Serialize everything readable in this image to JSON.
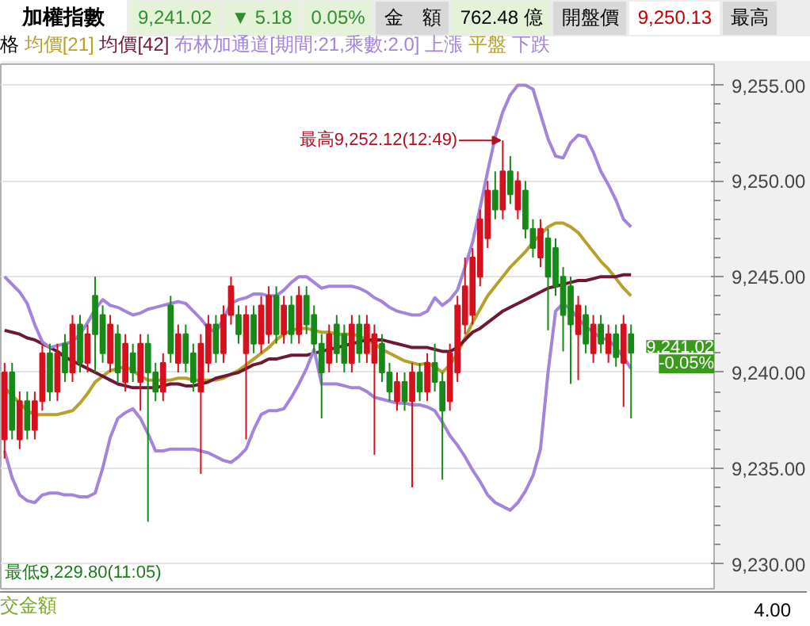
{
  "chart_data": {
    "type": "candlestick",
    "title": "加權指數",
    "categories": [
      null,
      null,
      null,
      null,
      null,
      null,
      null,
      null,
      null,
      null,
      null,
      null,
      null,
      null,
      null,
      null,
      null,
      null,
      null,
      null,
      null,
      null,
      null,
      null,
      null,
      null,
      null,
      null,
      null,
      null,
      null,
      null,
      null,
      null,
      null,
      null,
      null,
      null,
      null,
      null,
      null,
      null,
      null,
      null,
      null,
      null,
      null,
      null,
      null,
      null,
      null,
      null,
      null,
      null,
      null,
      null,
      null,
      null,
      null,
      null,
      null,
      null,
      null,
      null,
      null,
      null,
      null,
      null,
      null,
      null,
      null,
      null,
      null,
      null,
      null,
      null,
      null,
      null,
      null,
      null,
      null,
      null,
      null,
      null
    ],
    "ohlc": [
      [
        9236.5,
        9240.5,
        9235.5,
        9240
      ],
      [
        9240,
        9240.5,
        9236.5,
        9237
      ],
      [
        9236.5,
        9239,
        9236,
        9238.5
      ],
      [
        9238.5,
        9239,
        9236.5,
        9237
      ],
      [
        9237,
        9239,
        9236.5,
        9238.5
      ],
      [
        9238.5,
        9241.5,
        9238,
        9241
      ],
      [
        9241,
        9241.5,
        9238.5,
        9239
      ],
      [
        9239,
        9241.5,
        9238.5,
        9241
      ],
      [
        9241.5,
        9242,
        9239.5,
        9240
      ],
      [
        9240,
        9243,
        9239.5,
        9242.5
      ],
      [
        9242.5,
        9243,
        9240,
        9240.5
      ],
      [
        9240.5,
        9242.5,
        9240,
        9242
      ],
      [
        9244,
        9245,
        9240,
        9242
      ],
      [
        9243,
        9243.5,
        9240.5,
        9241
      ],
      [
        9240.5,
        9243,
        9240,
        9242.5
      ],
      [
        9242,
        9242.5,
        9239.5,
        9240
      ],
      [
        9239.5,
        9242,
        9239,
        9241.5
      ],
      [
        9241,
        9241.5,
        9239.5,
        9240
      ],
      [
        9239.5,
        9242,
        9238,
        9241.5
      ],
      [
        9241.5,
        9242,
        9232.2,
        9240
      ],
      [
        9240,
        9240.5,
        9238.5,
        9239
      ],
      [
        9239,
        9241,
        9238.5,
        9240.5
      ],
      [
        9243.5,
        9244,
        9240.5,
        9241
      ],
      [
        9240.5,
        9242.5,
        9240,
        9242
      ],
      [
        9242,
        9242.5,
        9240,
        9240.5
      ],
      [
        9241,
        9241.5,
        9239,
        9239.5
      ],
      [
        9239,
        9242,
        9234.7,
        9241.5
      ],
      [
        9240.5,
        9243,
        9240,
        9242.5
      ],
      [
        9242.5,
        9243,
        9240.5,
        9241
      ],
      [
        9241,
        9243.5,
        9240.5,
        9243
      ],
      [
        9243,
        9245,
        9242.5,
        9244.5
      ],
      [
        9243,
        9243.5,
        9241.5,
        9242
      ],
      [
        9241,
        9243.5,
        9236.5,
        9243
      ],
      [
        9243,
        9243.5,
        9241,
        9241.5
      ],
      [
        9241.5,
        9244,
        9241,
        9243.5
      ],
      [
        9242,
        9244.5,
        9241.5,
        9244
      ],
      [
        9244,
        9244.5,
        9241.5,
        9242
      ],
      [
        9242,
        9244,
        9241.5,
        9243.5
      ],
      [
        9243.5,
        9244,
        9241.5,
        9242
      ],
      [
        9242,
        9244.5,
        9241.5,
        9244
      ],
      [
        9244,
        9244.5,
        9242,
        9242.5
      ],
      [
        9243,
        9243.5,
        9241,
        9241.5
      ],
      [
        9241.5,
        9242,
        9237.6,
        9240
      ],
      [
        9240.5,
        9242.5,
        9240,
        9242
      ],
      [
        9242.5,
        9243,
        9240.5,
        9241
      ],
      [
        9242,
        9242.5,
        9240,
        9240.5
      ],
      [
        9240.5,
        9243,
        9240,
        9242.5
      ],
      [
        9242.5,
        9243,
        9240.5,
        9241
      ],
      [
        9241,
        9243,
        9240.5,
        9242.5
      ],
      [
        9240.5,
        9242.5,
        9235.7,
        9242
      ],
      [
        9241.5,
        9242,
        9239.5,
        9240
      ],
      [
        9240,
        9240.5,
        9238.5,
        9239
      ],
      [
        9238.5,
        9240,
        9238,
        9239.5
      ],
      [
        9239.5,
        9240,
        9238,
        9238.5
      ],
      [
        9238.5,
        9240.5,
        9234,
        9240
      ],
      [
        9240,
        9240.5,
        9238.5,
        9239
      ],
      [
        9239,
        9241,
        9238.5,
        9240.5
      ],
      [
        9240.5,
        9241.5,
        9239,
        9239.5
      ],
      [
        9239.5,
        9240,
        9234.4,
        9238
      ],
      [
        9238.5,
        9241.5,
        9238,
        9241
      ],
      [
        9240,
        9244,
        9239.5,
        9243.5
      ],
      [
        9242.5,
        9246,
        9242,
        9244.5
      ],
      [
        9243,
        9246.5,
        9242.5,
        9246
      ],
      [
        9245,
        9248.5,
        9244.5,
        9248
      ],
      [
        9247,
        9250,
        9246.5,
        9249.5
      ],
      [
        9249.5,
        9250.5,
        9248,
        9248.5
      ],
      [
        9248.5,
        9252.12,
        9248,
        9250.5
      ],
      [
        9250.5,
        9251.3,
        9248.8,
        9249.3
      ],
      [
        9248.5,
        9250.5,
        9248,
        9250
      ],
      [
        9249.5,
        9250,
        9247,
        9247.5
      ],
      [
        9247.5,
        9248,
        9246,
        9246.5
      ],
      [
        9246,
        9248,
        9245.5,
        9247.5
      ],
      [
        9247,
        9247.5,
        9242.2,
        9245
      ],
      [
        9246.5,
        9247,
        9244,
        9244.5
      ],
      [
        9245,
        9245.5,
        9241.1,
        9243
      ],
      [
        9244.5,
        9245,
        9239.4,
        9242.5
      ],
      [
        9242,
        9244,
        9239.6,
        9243.5
      ],
      [
        9243,
        9243.5,
        9241,
        9241.5
      ],
      [
        9241,
        9243,
        9240.5,
        9242.5
      ],
      [
        9242.5,
        9243,
        9241,
        9241.5
      ],
      [
        9241,
        9242.5,
        9240.5,
        9242
      ],
      [
        9242,
        9242.5,
        9240.3,
        9240.8
      ],
      [
        9240.5,
        9243,
        9238.2,
        9242.5
      ],
      [
        9242,
        9242.5,
        9237.6,
        9241.02
      ]
    ],
    "colors": [
      "#d7101e",
      "#168a16",
      "#d7101e",
      "#168a16",
      "#d7101e",
      "#d7101e",
      "#168a16",
      "#d7101e",
      "#168a16",
      "#d7101e",
      "#168a16",
      "#d7101e",
      "#168a16",
      "#168a16",
      "#d7101e",
      "#168a16",
      "#d7101e",
      "#168a16",
      "#d7101e",
      "#168a16",
      "#168a16",
      "#d7101e",
      "#168a16",
      "#d7101e",
      "#168a16",
      "#168a16",
      "#d7101e",
      "#d7101e",
      "#168a16",
      "#d7101e",
      "#d7101e",
      "#168a16",
      "#d7101e",
      "#168a16",
      "#d7101e",
      "#d7101e",
      "#168a16",
      "#d7101e",
      "#168a16",
      "#d7101e",
      "#168a16",
      "#168a16",
      "#168a16",
      "#d7101e",
      "#168a16",
      "#168a16",
      "#d7101e",
      "#168a16",
      "#d7101e",
      "#d7101e",
      "#168a16",
      "#168a16",
      "#d7101e",
      "#168a16",
      "#d7101e",
      "#168a16",
      "#d7101e",
      "#168a16",
      "#168a16",
      "#d7101e",
      "#d7101e",
      "#d7101e",
      "#d7101e",
      "#d7101e",
      "#d7101e",
      "#168a16",
      "#d7101e",
      "#168a16",
      "#d7101e",
      "#168a16",
      "#168a16",
      "#d7101e",
      "#168a16",
      "#168a16",
      "#168a16",
      "#168a16",
      "#d7101e",
      "#168a16",
      "#d7101e",
      "#168a16",
      "#d7101e",
      "#168a16",
      "#d7101e",
      "#168a16"
    ],
    "series": [
      {
        "name": "均價[21]",
        "type": "line",
        "color": "#b5a22c",
        "values": [
          9239.2,
          9238.8,
          9238.4,
          9238.0,
          9237.8,
          9237.8,
          9237.8,
          9237.8,
          9237.9,
          9238.0,
          9238.4,
          9238.9,
          9239.5,
          9239.8,
          9240.1,
          9240.2,
          9240.3,
          9240.1,
          9239.8,
          9239.6,
          9239.6,
          9239.6,
          9239.6,
          9239.7,
          9239.7,
          9239.6,
          9239.6,
          9239.6,
          9239.6,
          9239.7,
          9239.9,
          9240.1,
          9240.4,
          9240.7,
          9241.0,
          9241.3,
          9241.7,
          9242.0,
          9242.2,
          9242.3,
          9242.3,
          9242.2,
          9242.1,
          9242.1,
          9242.0,
          9242.0,
          9242.0,
          9241.9,
          9241.7,
          9241.5,
          9241.2,
          9241.0,
          9240.8,
          9240.6,
          9240.5,
          9240.4,
          9240.5,
          9240.3,
          9240.0,
          9240.4,
          9241.0,
          9241.8,
          9242.6,
          9243.3,
          9244.0,
          9244.5,
          9245.0,
          9245.5,
          9245.9,
          9246.3,
          9246.8,
          9247.2,
          9247.6,
          9247.8,
          9247.8,
          9247.6,
          9247.3,
          9246.8,
          9246.3,
          9245.8,
          9245.4,
          9244.9,
          9244.4,
          9244.0
        ]
      },
      {
        "name": "均價[42]",
        "type": "line",
        "color": "#6e1838",
        "values": [
          9242.2,
          9242.1,
          9242.0,
          9241.8,
          9241.7,
          9241.5,
          9241.3,
          9241.1,
          9240.8,
          9240.6,
          9240.4,
          9240.2,
          9240.0,
          9239.8,
          9239.6,
          9239.4,
          9239.3,
          9239.2,
          9239.2,
          9239.2,
          9239.2,
          9239.3,
          9239.4,
          9239.4,
          9239.3,
          9239.3,
          9239.4,
          9239.5,
          9239.7,
          9239.8,
          9239.9,
          9240.0,
          9240.2,
          9240.4,
          9240.5,
          9240.7,
          9240.7,
          9240.8,
          9240.9,
          9240.9,
          9240.9,
          9241.0,
          9241.1,
          9241.2,
          9241.3,
          9241.4,
          9241.5,
          9241.6,
          9241.7,
          9241.7,
          9241.7,
          9241.6,
          9241.5,
          9241.4,
          9241.3,
          9241.3,
          9241.3,
          9241.2,
          9241.1,
          9241.1,
          9241.3,
          9241.7,
          9242.1,
          9242.3,
          9242.6,
          9242.9,
          9243.2,
          9243.4,
          9243.6,
          9243.8,
          9244.0,
          9244.2,
          9244.4,
          9244.5,
          9244.6,
          9244.7,
          9244.8,
          9244.8,
          9244.9,
          9245.0,
          9245.0,
          9245.0,
          9245.1,
          9245.1
        ]
      },
      {
        "name": "布林加通道[期間:21,乘數:2.0]",
        "type": "line",
        "color": "#a383dc",
        "values": [
          9245.0,
          9244.6,
          9244.2,
          9243.6,
          9242.5,
          9241.6,
          9241.3,
          9241.4,
          9241.5,
          9241.6,
          9242.0,
          9242.6,
          9243.3,
          9243.8,
          9243.5,
          9243.4,
          9243.2,
          9243.0,
          9243.1,
          9243.3,
          9243.4,
          9243.5,
          9243.6,
          9243.7,
          9243.6,
          9243.2,
          9242.8,
          9242.3,
          9242.1,
          9242.8,
          9243.6,
          9243.8,
          9243.9,
          9244.1,
          9244.1,
          9244.0,
          9244.0,
          9244.3,
          9244.7,
          9245.0,
          9245.0,
          9244.7,
          9244.4,
          9244.5,
          9244.5,
          9244.5,
          9244.5,
          9244.4,
          9244.2,
          9243.9,
          9243.7,
          9243.4,
          9243.2,
          9243.1,
          9243.0,
          9243.0,
          9243.2,
          9243.9,
          9243.5,
          9243.8,
          9244.3,
          9245.5,
          9246.8,
          9248.6,
          9250.5,
          9252.3,
          9253.6,
          9254.5,
          9255.0,
          9255.0,
          9254.8,
          9253.5,
          9252.2,
          9251.3,
          9251.2,
          9252.0,
          9252.4,
          9252.3,
          9251.5,
          9250.5,
          9249.8,
          9249.0,
          9248.0,
          9247.6
        ]
      },
      {
        "type": "line",
        "color": "#a383dc",
        "values": [
          9235.9,
          9234.5,
          9233.6,
          9233.3,
          9233.2,
          9233.6,
          9233.7,
          9233.7,
          9233.6,
          9233.6,
          9233.5,
          9233.5,
          9233.7,
          9235.0,
          9236.6,
          9237.6,
          9237.9,
          9238.1,
          9237.6,
          9236.8,
          9235.9,
          9235.9,
          9236.0,
          9236.0,
          9236.0,
          9236.0,
          9235.9,
          9235.8,
          9235.6,
          9235.4,
          9235.3,
          9235.6,
          9236.0,
          9237.0,
          9237.8,
          9238.0,
          9238.0,
          9238.1,
          9238.7,
          9239.4,
          9240.2,
          9241.2,
          9239.4,
          9239.4,
          9239.4,
          9239.3,
          9239.2,
          9239.2,
          9239.0,
          9238.7,
          9238.6,
          9238.5,
          9238.4,
          9238.4,
          9238.3,
          9238.3,
          9238.2,
          9238.0,
          9237.4,
          9236.7,
          9236.2,
          9235.6,
          9234.9,
          9234.3,
          9233.6,
          9233.2,
          9233.0,
          9232.8,
          9233.2,
          9233.8,
          9234.6,
          9236.0,
          9240.0,
          9243.2,
          9243.6,
          9243.3,
          9242.8,
          9242.4,
          9242.1,
          9241.8,
          9241.7,
          9241.3,
          9240.8,
          9240.2
        ]
      }
    ],
    "ylim": [
      9228.7,
      9256.1
    ],
    "yticks": [
      {
        "value": 9230,
        "label": "9,230.00"
      },
      {
        "value": 9235,
        "label": "9,235.00"
      },
      {
        "value": 9240,
        "label": "9,240.00"
      },
      {
        "value": 9245,
        "label": "9,245.00"
      },
      {
        "value": 9250,
        "label": "9,250.00"
      },
      {
        "value": 9255,
        "label": "9,255.00"
      }
    ],
    "grid": "y",
    "legend": "top left",
    "annotations": [
      "9,241.02",
      "▼ 5.18",
      "0.05%",
      "金　額",
      "762.48 億",
      "開盤價",
      "9,250.13",
      "最高",
      "格",
      "上漲",
      "平盤",
      "下跌",
      "最高9,252.12(12:49)",
      "最低9,229.80(11:05)",
      "9,241.02",
      "-0.05%",
      "交金額",
      "4.00"
    ]
  }
}
